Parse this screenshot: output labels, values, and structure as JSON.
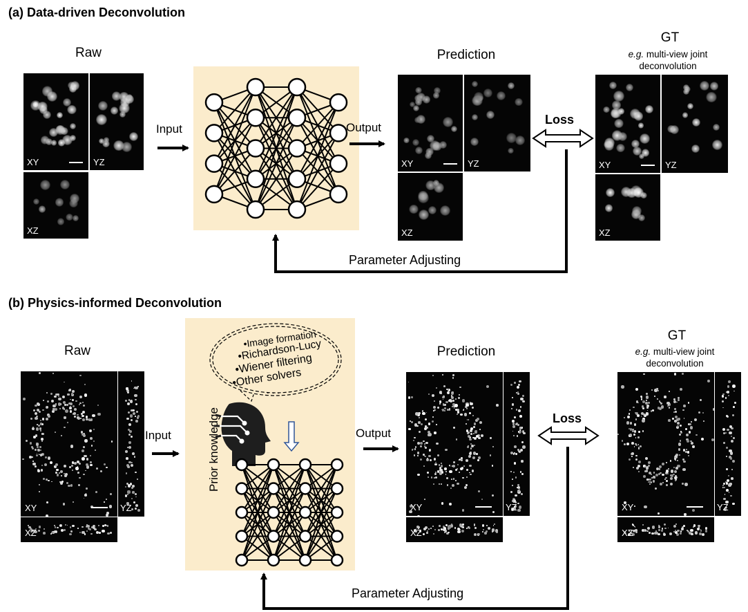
{
  "panel_a": {
    "title": "(a) Data-driven Deconvolution",
    "raw_label": "Raw",
    "input_label": "Input",
    "output_label": "Output",
    "prediction_label": "Prediction",
    "gt_label": "GT",
    "gt_sub_prefix": "e.g.",
    "gt_sub_line1": "multi-view joint",
    "gt_sub_line2": "deconvolution",
    "loss_label": "Loss",
    "param_label": "Parameter Adjusting",
    "views": {
      "xy": "XY",
      "yz": "YZ",
      "xz": "XZ"
    }
  },
  "panel_b": {
    "title": "(b) Physics-informed Deconvolution",
    "raw_label": "Raw",
    "input_label": "Input",
    "output_label": "Output",
    "prediction_label": "Prediction",
    "gt_label": "GT",
    "gt_sub_prefix": "e.g.",
    "gt_sub_line1": "multi-view joint",
    "gt_sub_line2": "deconvolution",
    "loss_label": "Loss",
    "param_label": "Parameter Adjusting",
    "prior_label": "Prior knowledge",
    "prior_items": [
      "Image formation",
      "Richardson-Lucy",
      "Wiener filtering",
      "Other solvers"
    ],
    "prior_more": ". . .",
    "views": {
      "xy": "XY",
      "yz": "YZ",
      "xz": "XZ"
    }
  },
  "colors": {
    "nn_background": "#fbeccc",
    "hollow_arrow_blue": "#2f5597"
  },
  "icons": [
    "head-circuit-icon",
    "neural-network-icon",
    "double-arrow-icon",
    "arrow-icon"
  ]
}
